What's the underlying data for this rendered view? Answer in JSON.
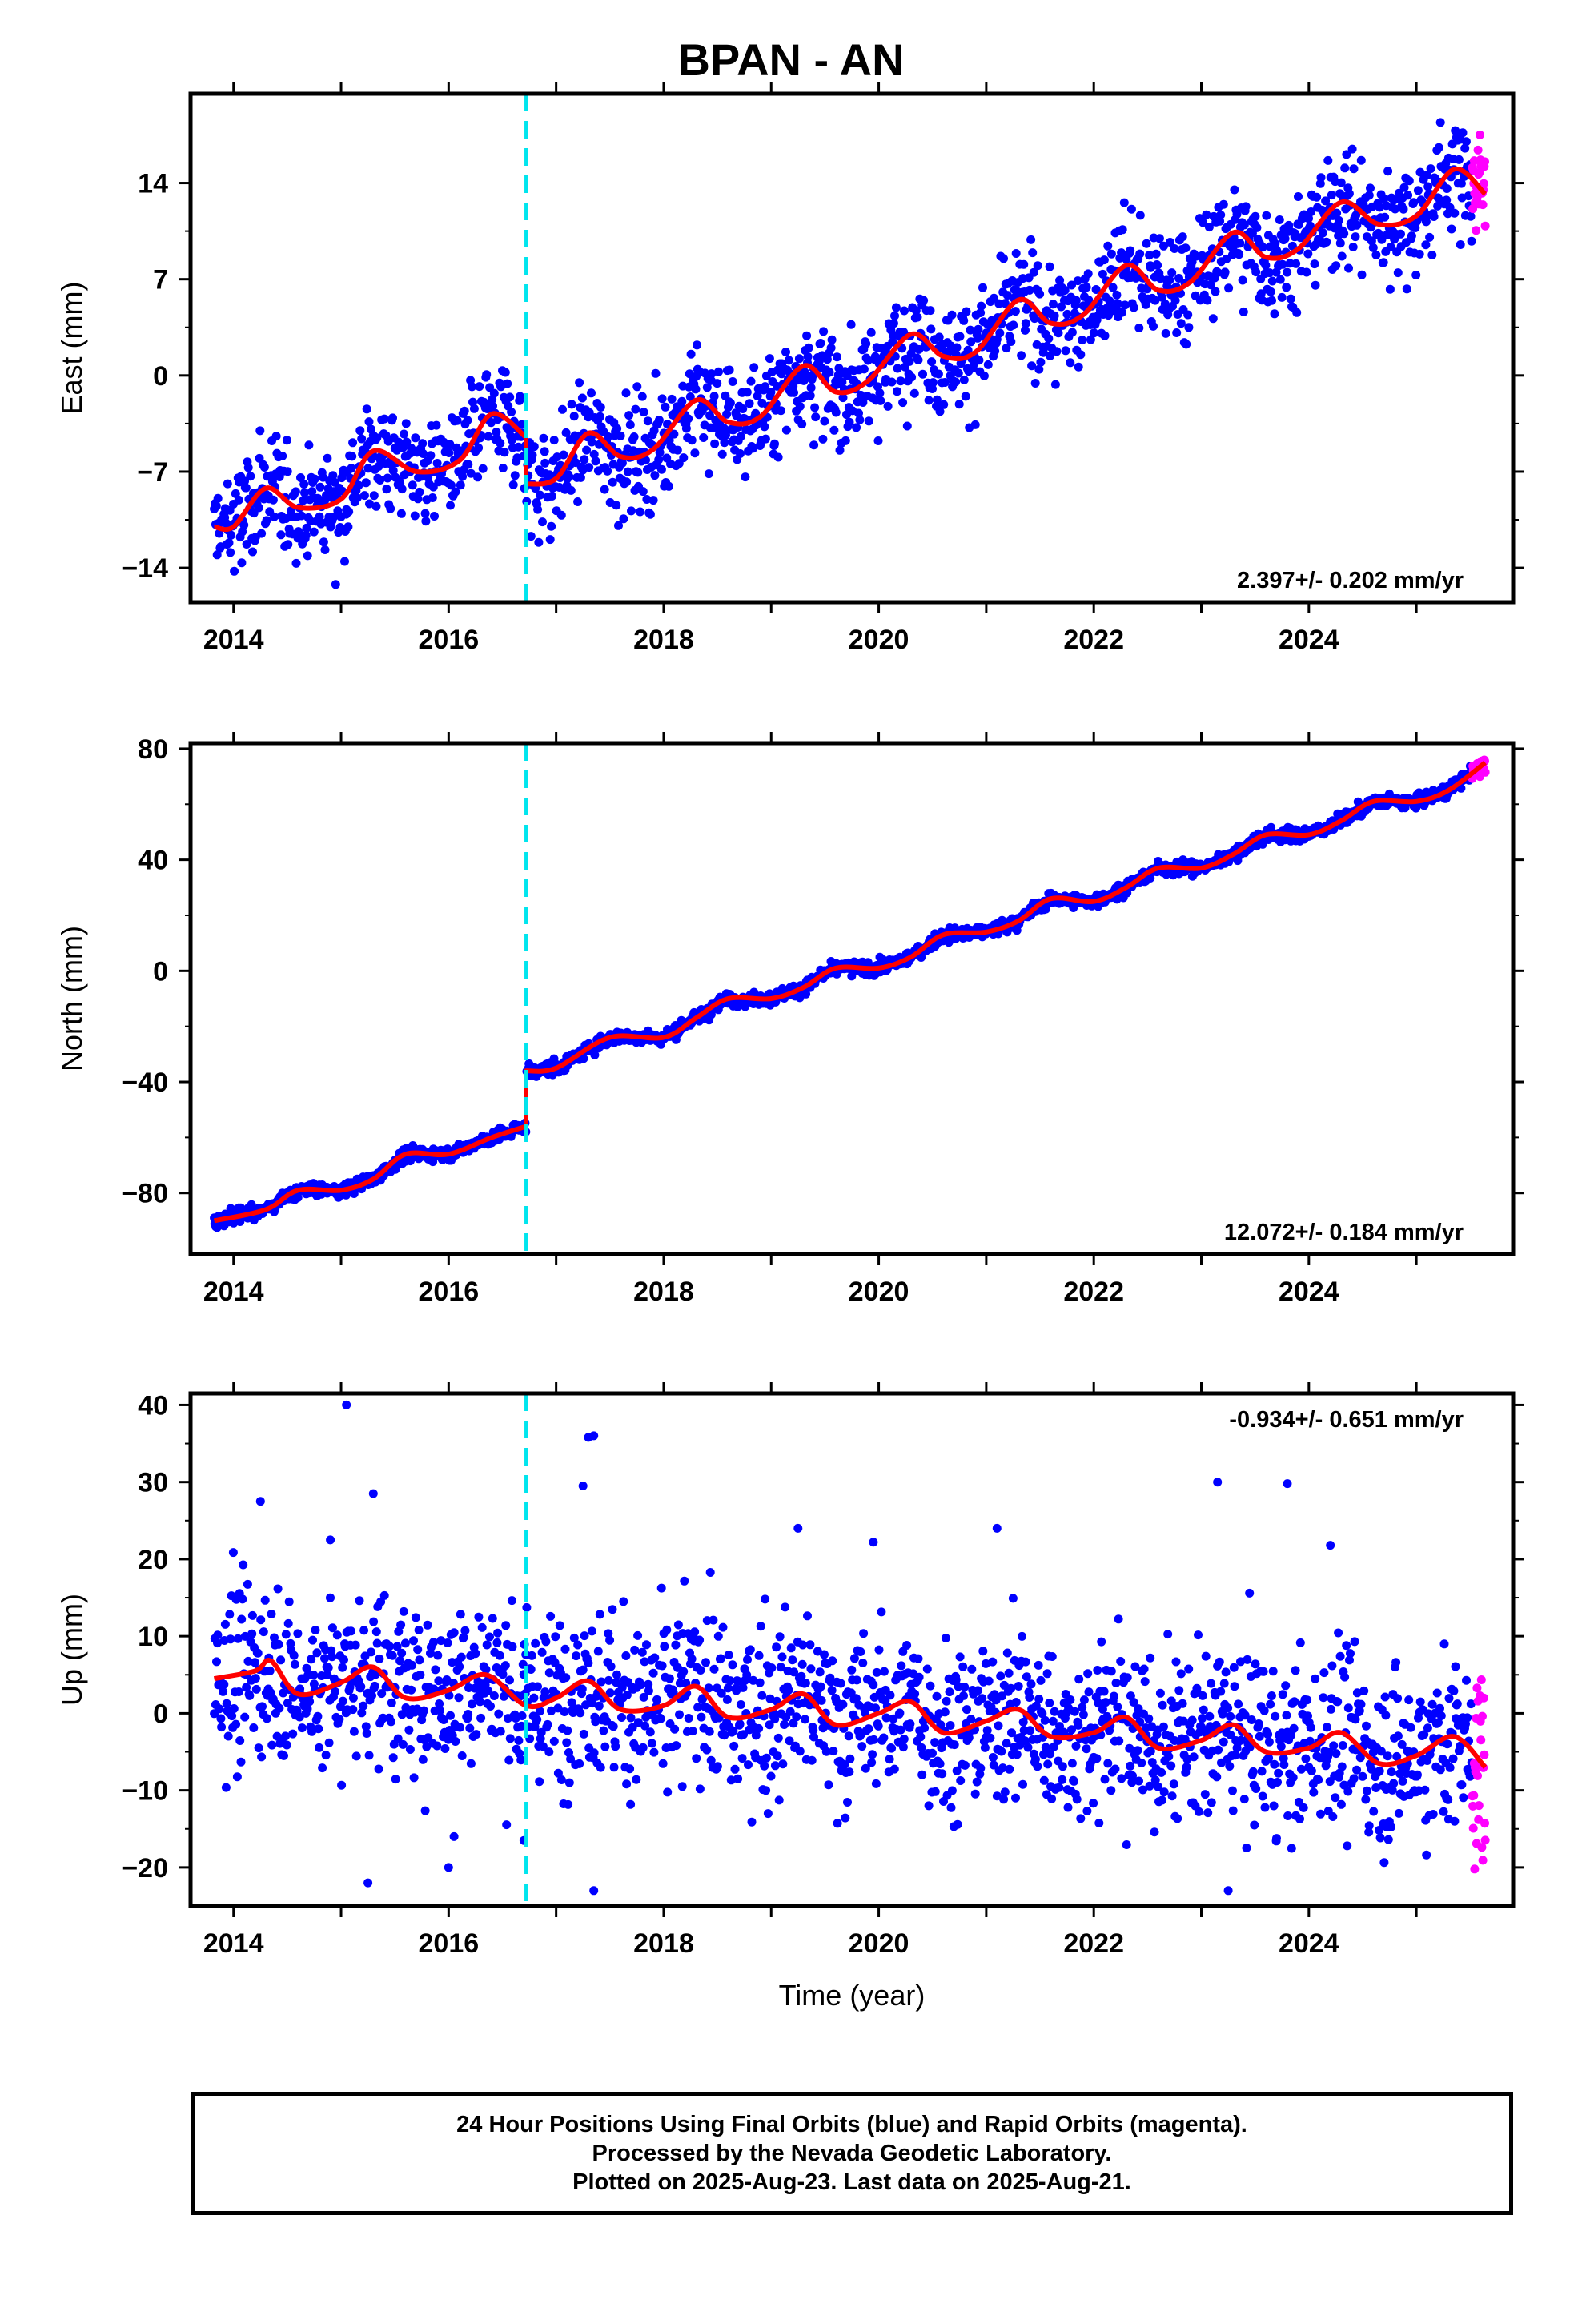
{
  "title": "BPAN - AN",
  "chart_data": [
    {
      "type": "scatter",
      "ylabel": "East (mm)",
      "xlim": [
        2013.6,
        2025.9
      ],
      "ylim": [
        -16.5,
        20.5
      ],
      "yticks": [
        -14,
        -7,
        0,
        7,
        14
      ],
      "xticks": [
        2014,
        2016,
        2018,
        2020,
        2022,
        2024
      ],
      "rate_label": "2.397+/- 0.202 mm/yr",
      "rate_position": "bottom-right",
      "rate_mm_per_yr": 2.397,
      "offset_epoch": 2016.72,
      "final_orbits_start": 2013.82,
      "final_orbits_end": 2025.52,
      "rapid_orbits_start": 2025.52,
      "rapid_orbits_end": 2025.64,
      "scatter_mm": 2.0,
      "trend_points": [
        [
          2013.82,
          -11.0
        ],
        [
          2014.0,
          -11.0
        ],
        [
          2014.3,
          -8.2
        ],
        [
          2014.6,
          -9.6
        ],
        [
          2015.0,
          -9.0
        ],
        [
          2015.3,
          -5.5
        ],
        [
          2015.7,
          -7.0
        ],
        [
          2016.1,
          -6.2
        ],
        [
          2016.4,
          -2.8
        ],
        [
          2016.72,
          -4.5
        ],
        [
          2016.72,
          -7.9
        ],
        [
          2017.0,
          -7.5
        ],
        [
          2017.3,
          -4.2
        ],
        [
          2017.6,
          -5.9
        ],
        [
          2017.9,
          -5.4
        ],
        [
          2018.3,
          -1.8
        ],
        [
          2018.6,
          -3.4
        ],
        [
          2018.9,
          -3.0
        ],
        [
          2019.3,
          0.7
        ],
        [
          2019.6,
          -1.2
        ],
        [
          2019.9,
          -0.4
        ],
        [
          2020.3,
          3.0
        ],
        [
          2020.6,
          1.4
        ],
        [
          2020.9,
          1.7
        ],
        [
          2021.3,
          5.5
        ],
        [
          2021.6,
          3.8
        ],
        [
          2021.9,
          4.4
        ],
        [
          2022.3,
          8.0
        ],
        [
          2022.6,
          6.2
        ],
        [
          2022.9,
          6.8
        ],
        [
          2023.3,
          10.4
        ],
        [
          2023.6,
          8.6
        ],
        [
          2023.9,
          9.2
        ],
        [
          2024.3,
          12.6
        ],
        [
          2024.65,
          11.0
        ],
        [
          2025.0,
          11.6
        ],
        [
          2025.35,
          15.0
        ],
        [
          2025.64,
          13.2
        ]
      ]
    },
    {
      "type": "scatter",
      "ylabel": "North (mm)",
      "xlim": [
        2013.6,
        2025.9
      ],
      "ylim": [
        -102,
        82
      ],
      "yticks": [
        -80,
        -40,
        0,
        40,
        80
      ],
      "xticks": [
        2014,
        2016,
        2018,
        2020,
        2022,
        2024
      ],
      "rate_label": "12.072+/- 0.184 mm/yr",
      "rate_position": "bottom-right",
      "rate_mm_per_yr": 12.072,
      "offset_epoch": 2016.72,
      "final_orbits_start": 2013.82,
      "final_orbits_end": 2025.52,
      "rapid_orbits_start": 2025.52,
      "rapid_orbits_end": 2025.64,
      "scatter_mm": 1.2,
      "trend_points": [
        [
          2013.82,
          -90.0
        ],
        [
          2014.3,
          -86.0
        ],
        [
          2014.6,
          -79.0
        ],
        [
          2015.0,
          -79.0
        ],
        [
          2015.3,
          -75.0
        ],
        [
          2015.6,
          -66.0
        ],
        [
          2016.0,
          -66.0
        ],
        [
          2016.4,
          -60.0
        ],
        [
          2016.72,
          -56.0
        ],
        [
          2016.72,
          -36.0
        ],
        [
          2017.0,
          -35.0
        ],
        [
          2017.5,
          -24.0
        ],
        [
          2018.0,
          -24.0
        ],
        [
          2018.3,
          -17.0
        ],
        [
          2018.6,
          -10.0
        ],
        [
          2019.0,
          -10.0
        ],
        [
          2019.3,
          -6.0
        ],
        [
          2019.6,
          1.0
        ],
        [
          2020.0,
          1.0
        ],
        [
          2020.3,
          5.0
        ],
        [
          2020.6,
          13.0
        ],
        [
          2021.0,
          14.0
        ],
        [
          2021.3,
          18.0
        ],
        [
          2021.6,
          26.0
        ],
        [
          2022.0,
          25.0
        ],
        [
          2022.3,
          30.0
        ],
        [
          2022.6,
          37.0
        ],
        [
          2023.0,
          37.0
        ],
        [
          2023.3,
          42.0
        ],
        [
          2023.6,
          49.0
        ],
        [
          2024.0,
          49.0
        ],
        [
          2024.3,
          54.0
        ],
        [
          2024.6,
          61.0
        ],
        [
          2025.0,
          61.0
        ],
        [
          2025.3,
          65.0
        ],
        [
          2025.64,
          75.0
        ]
      ]
    },
    {
      "type": "scatter",
      "ylabel": "Up (mm)",
      "xlabel": "Time (year)",
      "xlim": [
        2013.6,
        2025.9
      ],
      "ylim": [
        -25,
        41.5
      ],
      "yticks": [
        -20,
        -10,
        0,
        10,
        20,
        30,
        40
      ],
      "xticks": [
        2014,
        2016,
        2018,
        2020,
        2022,
        2024
      ],
      "rate_label": "-0.934+/- 0.651 mm/yr",
      "rate_position": "top-right",
      "rate_mm_per_yr": -0.934,
      "offset_epoch": 2016.72,
      "final_orbits_start": 2013.82,
      "final_orbits_end": 2025.52,
      "rapid_orbits_start": 2025.52,
      "rapid_orbits_end": 2025.64,
      "scatter_mm": 5.5,
      "trend_points": [
        [
          2013.82,
          4.5
        ],
        [
          2014.2,
          5.5
        ],
        [
          2014.35,
          6.8
        ],
        [
          2014.6,
          2.5
        ],
        [
          2015.0,
          4.0
        ],
        [
          2015.3,
          6.0
        ],
        [
          2015.6,
          2.0
        ],
        [
          2016.0,
          3.0
        ],
        [
          2016.35,
          5.0
        ],
        [
          2016.72,
          1.0
        ],
        [
          2017.0,
          2.0
        ],
        [
          2017.3,
          4.2
        ],
        [
          2017.6,
          0.5
        ],
        [
          2018.0,
          1.0
        ],
        [
          2018.3,
          3.5
        ],
        [
          2018.6,
          -0.5
        ],
        [
          2019.0,
          0.5
        ],
        [
          2019.3,
          2.5
        ],
        [
          2019.6,
          -1.5
        ],
        [
          2020.0,
          0.0
        ],
        [
          2020.3,
          1.5
        ],
        [
          2020.6,
          -2.5
        ],
        [
          2021.0,
          -1.0
        ],
        [
          2021.3,
          0.5
        ],
        [
          2021.6,
          -3.0
        ],
        [
          2022.0,
          -2.5
        ],
        [
          2022.3,
          -0.5
        ],
        [
          2022.6,
          -4.5
        ],
        [
          2023.0,
          -3.5
        ],
        [
          2023.3,
          -1.5
        ],
        [
          2023.6,
          -5.0
        ],
        [
          2024.0,
          -4.5
        ],
        [
          2024.3,
          -2.5
        ],
        [
          2024.65,
          -6.5
        ],
        [
          2025.0,
          -5.5
        ],
        [
          2025.35,
          -3.0
        ],
        [
          2025.64,
          -7.0
        ]
      ],
      "outliers": [
        [
          2015.05,
          40.0
        ],
        [
          2017.35,
          36.0
        ],
        [
          2017.3,
          35.8
        ],
        [
          2017.25,
          29.5
        ],
        [
          2023.15,
          30.0
        ],
        [
          2023.8,
          29.8
        ],
        [
          2015.3,
          28.5
        ],
        [
          2014.25,
          27.5
        ],
        [
          2019.25,
          24.0
        ],
        [
          2021.1,
          24.0
        ],
        [
          2014.9,
          22.5
        ],
        [
          2019.95,
          22.2
        ],
        [
          2024.2,
          21.8
        ],
        [
          2016.05,
          -16.0
        ],
        [
          2016.0,
          -20.0
        ],
        [
          2015.25,
          -22.0
        ],
        [
          2017.35,
          -23.0
        ],
        [
          2023.25,
          -23.0
        ],
        [
          2016.7,
          -16.5
        ]
      ]
    }
  ],
  "colors": {
    "final_orbits": "#0000ff",
    "rapid_orbits": "#ff00ff",
    "trend": "#ff0000",
    "offset_line": "#00e5ee"
  },
  "footer": {
    "line1": "24 Hour Positions Using Final Orbits (blue) and Rapid Orbits (magenta).",
    "line2": "Processed by the Nevada Geodetic Laboratory.",
    "line3": "Plotted on 2025-Aug-23. Last data on 2025-Aug-21."
  }
}
